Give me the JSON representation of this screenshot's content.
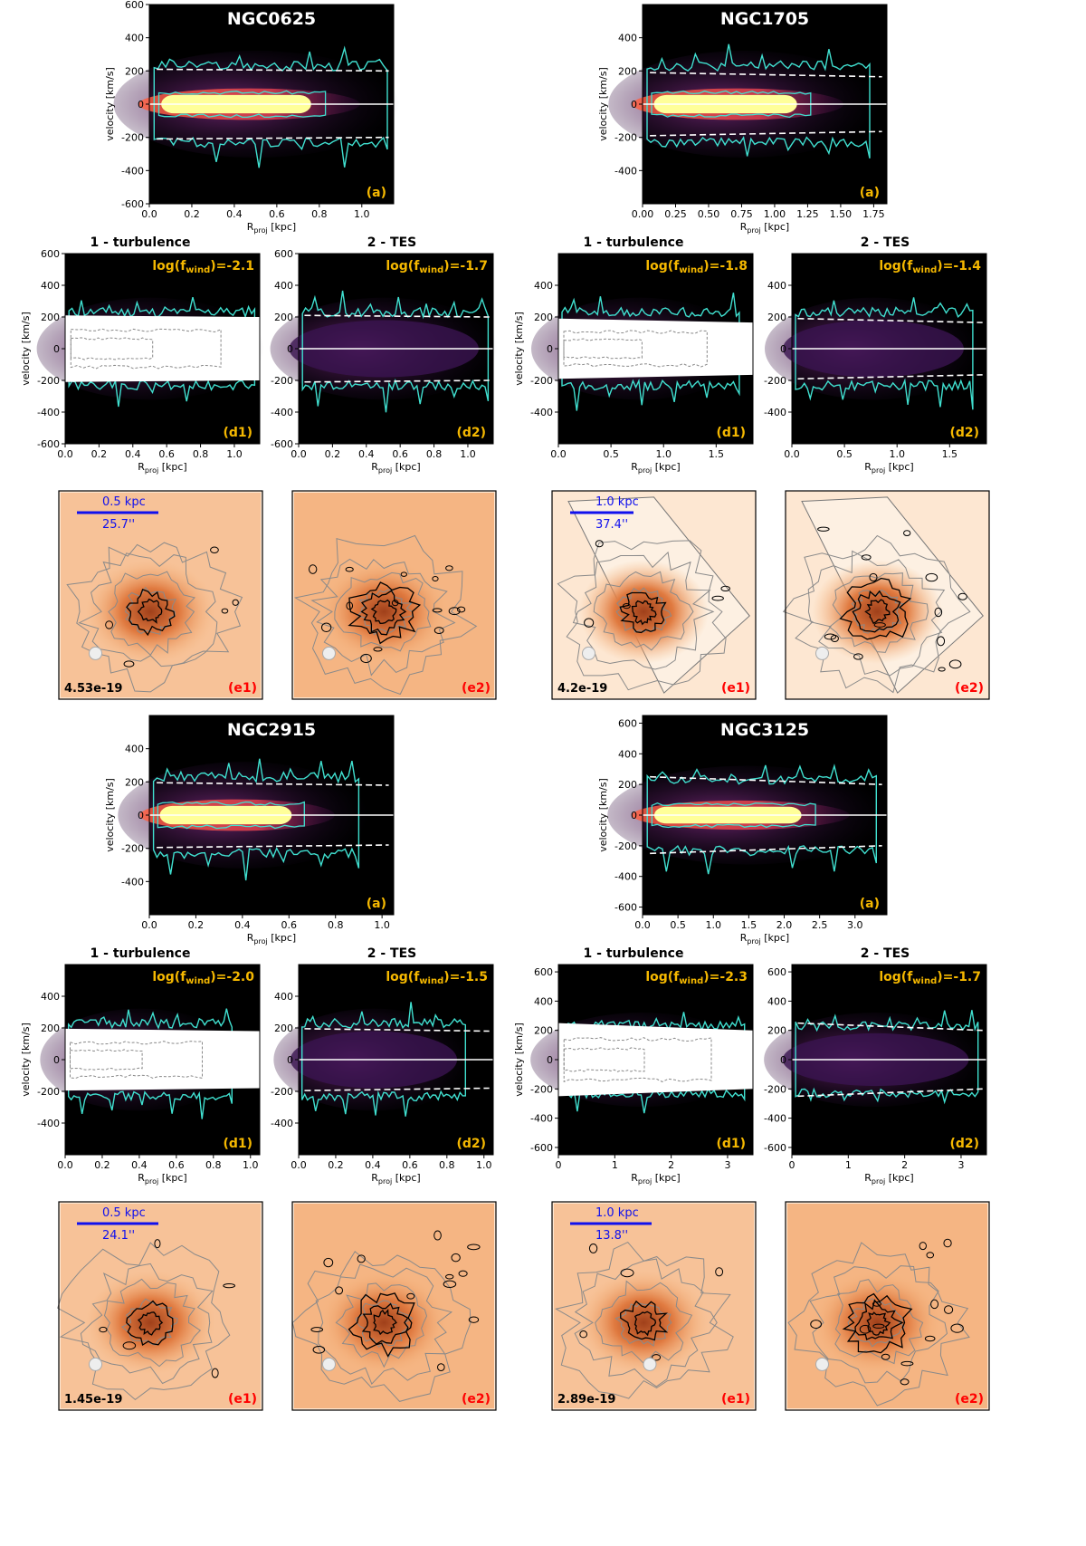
{
  "labels": {
    "ylabel": "velocity [km/s]",
    "xlabel_base": "R",
    "xlabel_sub": "proj",
    "xlabel_unit": " [kpc]",
    "d1_title": "1 - turbulence",
    "d2_title": "2 - TES",
    "fwind_prefix": "log(f",
    "fwind_sub": "wind",
    "fwind_mid": ")=",
    "tag_a": "(a)",
    "tag_d1": "(d1)",
    "tag_d2": "(d2)",
    "tag_e1": "(e1)",
    "tag_e2": "(e2)"
  },
  "colors": {
    "background": "#000000",
    "core": "#ffff99",
    "contour": "#40e0d0",
    "label_gold": "#f5b800",
    "label_red": "#ff0000",
    "scalebar": "#1010ee",
    "map_bg": "#fde7d2",
    "map_fill": "#f2a468"
  },
  "galaxies": [
    {
      "name": "NGC0625",
      "a_xticks": [
        "0.0",
        "0.2",
        "0.4",
        "0.6",
        "0.8",
        "1.0"
      ],
      "a_xmax": 1.15,
      "a_yticks": [
        "-600",
        "-400",
        "-200",
        "0",
        "200",
        "400",
        "600"
      ],
      "a_ylim": [
        -600,
        600
      ],
      "d_xticks": [
        "0.0",
        "0.2",
        "0.4",
        "0.6",
        "0.8",
        "1.0"
      ],
      "d_xmax": 1.15,
      "d_yticks": [
        "-600",
        "-400",
        "-200",
        "0",
        "200",
        "400",
        "600"
      ],
      "d_ylim": [
        -600,
        600
      ],
      "boundary": [
        210,
        200
      ],
      "extent": 1.12,
      "fwind_d1": "-2.1",
      "fwind_d2": "-1.7",
      "scalebar_kpc": "0.5 kpc",
      "scalebar_arcsec": "25.7''",
      "flux_label": "4.53e-19",
      "map_style": "square"
    },
    {
      "name": "NGC1705",
      "a_xticks": [
        "0.00",
        "0.25",
        "0.50",
        "0.75",
        "1.00",
        "1.25",
        "1.50",
        "1.75"
      ],
      "a_xmax": 1.85,
      "a_yticks": [
        "-400",
        "-200",
        "0",
        "200",
        "400"
      ],
      "a_ylim": [
        -600,
        600
      ],
      "d_xticks": [
        "0.0",
        "0.5",
        "1.0",
        "1.5"
      ],
      "d_xmax": 1.85,
      "d_yticks": [
        "-400",
        "-200",
        "0",
        "200",
        "400"
      ],
      "d_ylim": [
        -600,
        600
      ],
      "boundary": [
        190,
        165
      ],
      "extent": 1.72,
      "fwind_d1": "-1.8",
      "fwind_d2": "-1.4",
      "scalebar_kpc": "1.0 kpc",
      "scalebar_arcsec": "37.4''",
      "flux_label": "4.2e-19",
      "map_style": "tilted"
    },
    {
      "name": "NGC2915",
      "a_xticks": [
        "0.0",
        "0.2",
        "0.4",
        "0.6",
        "0.8",
        "1.0"
      ],
      "a_xmax": 1.05,
      "a_yticks": [
        "-400",
        "-200",
        "0",
        "200",
        "400"
      ],
      "a_ylim": [
        -600,
        600
      ],
      "d_xticks": [
        "0.0",
        "0.2",
        "0.4",
        "0.6",
        "0.8",
        "1.0"
      ],
      "d_xmax": 1.05,
      "d_yticks": [
        "-400",
        "-200",
        "0",
        "200",
        "400"
      ],
      "d_ylim": [
        -600,
        600
      ],
      "boundary": [
        195,
        180
      ],
      "extent": 0.9,
      "fwind_d1": "-2.0",
      "fwind_d2": "-1.5",
      "scalebar_kpc": "0.5 kpc",
      "scalebar_arcsec": "24.1''",
      "flux_label": "1.45e-19",
      "map_style": "square"
    },
    {
      "name": "NGC3125",
      "a_xticks": [
        "0.0",
        "0.5",
        "1.0",
        "1.5",
        "2.0",
        "2.5",
        "3.0"
      ],
      "a_xmax": 3.45,
      "a_yticks": [
        "-600",
        "-400",
        "-200",
        "0",
        "200",
        "400",
        "600"
      ],
      "a_ylim": [
        -650,
        650
      ],
      "d_xticks": [
        "0",
        "1",
        "2",
        "3"
      ],
      "d_xmax": 3.45,
      "d_yticks": [
        "-600",
        "-400",
        "-200",
        "0",
        "200",
        "400",
        "600"
      ],
      "d_ylim": [
        -650,
        650
      ],
      "boundary": [
        250,
        200
      ],
      "extent": 3.3,
      "fwind_d1": "-2.3",
      "fwind_d2": "-1.7",
      "scalebar_kpc": "1.0 kpc",
      "scalebar_arcsec": "13.8''",
      "flux_label": "2.89e-19",
      "map_style": "square"
    }
  ],
  "chart_data": {
    "type": "heatmap",
    "description_units": "position-velocity diagrams; x = projected radius (kpc), y = velocity (km/s)",
    "series": [
      {
        "name": "NGC0625",
        "x_range": [
          0,
          1.15
        ],
        "y_range": [
          -600,
          600
        ],
        "escape_velocity": [
          210,
          200
        ],
        "log_fwind_turbulence": -2.1,
        "log_fwind_TES": -1.7
      },
      {
        "name": "NGC1705",
        "x_range": [
          0,
          1.85
        ],
        "y_range": [
          -600,
          600
        ],
        "escape_velocity": [
          190,
          165
        ],
        "log_fwind_turbulence": -1.8,
        "log_fwind_TES": -1.4
      },
      {
        "name": "NGC2915",
        "x_range": [
          0,
          1.05
        ],
        "y_range": [
          -600,
          600
        ],
        "escape_velocity": [
          195,
          180
        ],
        "log_fwind_turbulence": -2.0,
        "log_fwind_TES": -1.5
      },
      {
        "name": "NGC3125",
        "x_range": [
          0,
          3.45
        ],
        "y_range": [
          -650,
          650
        ],
        "escape_velocity": [
          250,
          200
        ],
        "log_fwind_turbulence": -2.3,
        "log_fwind_TES": -1.7
      }
    ]
  }
}
